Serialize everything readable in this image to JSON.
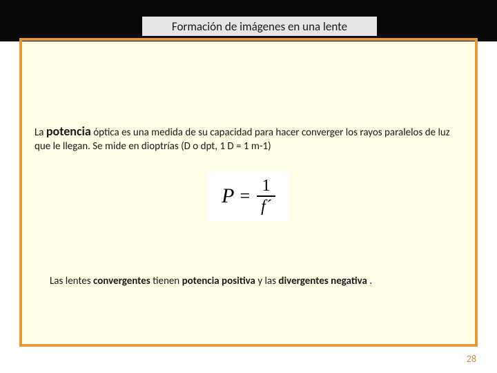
{
  "colors": {
    "top_bar": "#0a0a0a",
    "title_bg": "#e6e6e6",
    "frame_border": "#e69b2f",
    "panel_bg": "#fdfce4",
    "text": "#1a1a1a",
    "page_num": "#bf8f4f",
    "formula_bg": "#ffffff"
  },
  "title": "Formación de imágenes en una lente",
  "para1": {
    "pre": "La ",
    "strong": "potencia",
    "mid": " óptica es una medida de su capacidad para hacer converger los rayos paralelos de luz que le llegan. Se mide en dioptrías (D o dpt, 1 D = 1 m-1)"
  },
  "formula": {
    "lhs": "P",
    "eq": "=",
    "numerator": "1",
    "denominator": "f´"
  },
  "para2": {
    "t1": "Las lentes ",
    "b1": "convergentes",
    "t2": " tienen ",
    "b2": "potencia positiva",
    "t3": " y las ",
    "b3": "divergentes negativa",
    "t4": "."
  },
  "page_number": "28"
}
